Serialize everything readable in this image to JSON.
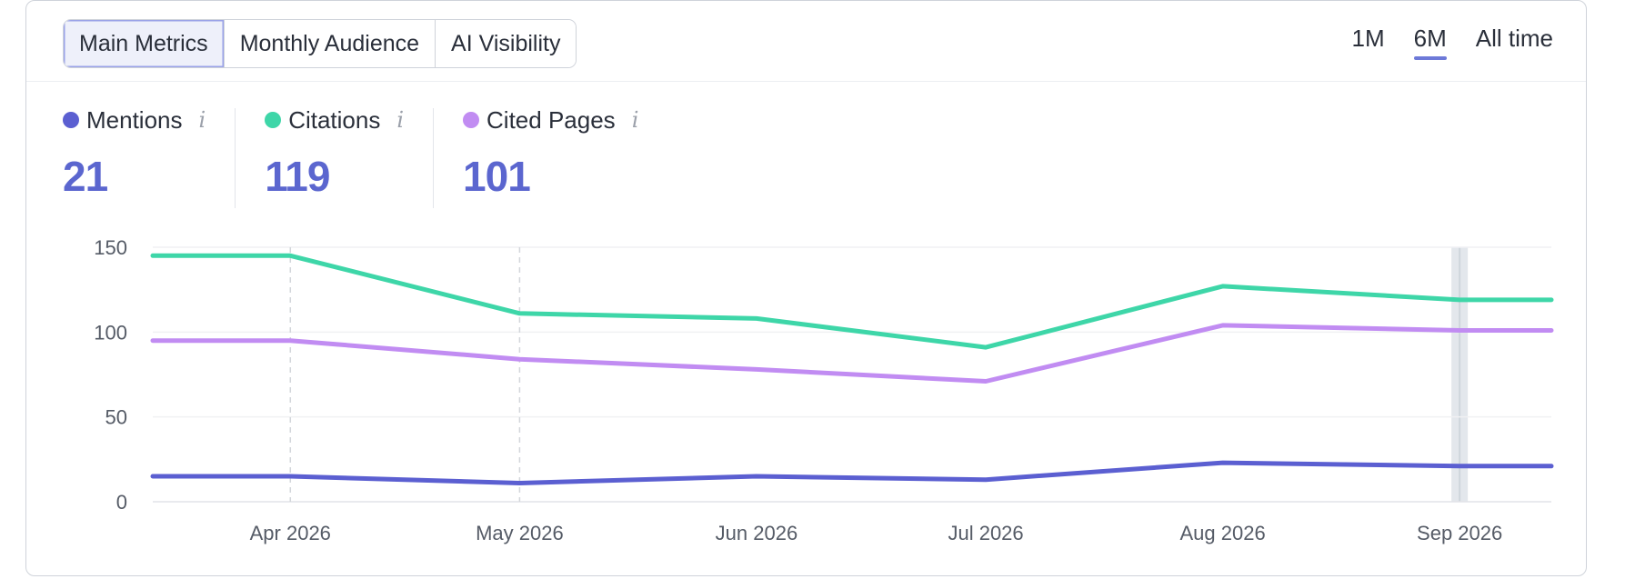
{
  "tabs": [
    {
      "label": "Main Metrics",
      "active": true
    },
    {
      "label": "Monthly Audience",
      "active": false
    },
    {
      "label": "AI Visibility",
      "active": false
    }
  ],
  "ranges": [
    {
      "label": "1M",
      "active": false
    },
    {
      "label": "6M",
      "active": true
    },
    {
      "label": "All time",
      "active": false
    }
  ],
  "metrics": [
    {
      "label": "Mentions",
      "value": "21",
      "color": "#5b5fd1",
      "info": "i"
    },
    {
      "label": "Citations",
      "value": "119",
      "color": "#3ed6a8",
      "info": "i"
    },
    {
      "label": "Cited Pages",
      "value": "101",
      "color": "#c18cf2",
      "info": "i"
    }
  ],
  "chart_data": {
    "type": "line",
    "x": [
      "2026-03-14",
      "2026-04-01",
      "2026-05-01",
      "2026-06-01",
      "2026-07-01",
      "2026-08-01",
      "2026-09-01",
      "2026-09-13"
    ],
    "x_tick_labels": [
      "Apr 2026",
      "May 2026",
      "Jun 2026",
      "Jul 2026",
      "Aug 2026",
      "Sep 2026"
    ],
    "x_tick_dates": [
      "2026-04-01",
      "2026-05-01",
      "2026-06-01",
      "2026-07-01",
      "2026-08-01",
      "2026-09-01"
    ],
    "ylim": [
      0,
      150
    ],
    "y_ticks": [
      0,
      50,
      100,
      150
    ],
    "series": [
      {
        "name": "Citations",
        "color": "#3ed6a8",
        "values": [
          145,
          145,
          111,
          108,
          91,
          127,
          119,
          119
        ]
      },
      {
        "name": "Cited Pages",
        "color": "#c18cf2",
        "values": [
          95,
          95,
          84,
          78,
          71,
          104,
          101,
          101
        ]
      },
      {
        "name": "Mentions",
        "color": "#5b5fd1",
        "values": [
          15,
          15,
          11,
          15,
          13,
          23,
          21,
          21
        ]
      }
    ],
    "grid": true,
    "highlight_x": "2026-09-01"
  }
}
